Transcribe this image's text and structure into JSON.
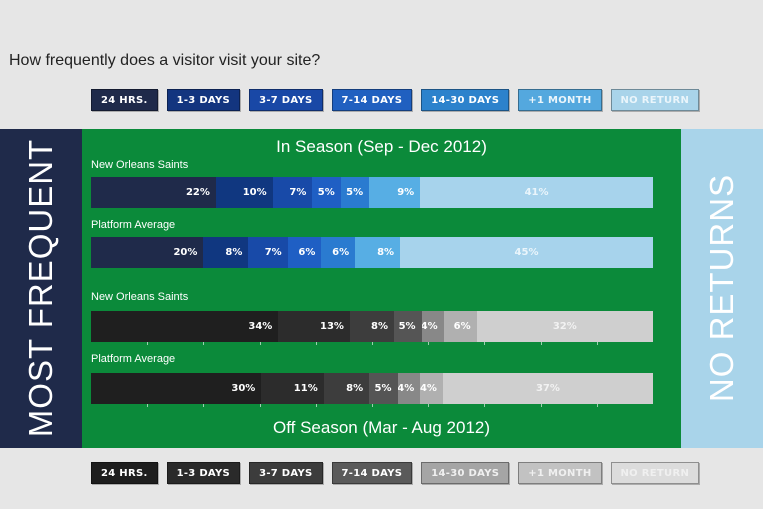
{
  "question": "How frequently does a visitor visit your site?",
  "side_labels": {
    "left": "MOST FREQUENT",
    "right": "NO RETURNS"
  },
  "legend_labels": [
    "24 HRS.",
    "1-3 DAYS",
    "3-7 DAYS",
    "7-14 DAYS",
    "14-30 DAYS",
    "+1 MONTH",
    "NO RETURN"
  ],
  "palettes": {
    "in_season": {
      "chips": [
        "#1f2a4a",
        "#13357f",
        "#1948a6",
        "#2060c0",
        "#2c82cc",
        "#54a8de",
        "#a9d4ea"
      ],
      "segments": [
        "#1f2a4a",
        "#103780",
        "#184aa8",
        "#1f5fc4",
        "#2a7bd0",
        "#57aee4",
        "#a7d3ec"
      ],
      "text": [
        "#ffffff",
        "#ffffff",
        "#ffffff",
        "#ffffff",
        "#ffffff",
        "#ffffff",
        "#eaf5fb"
      ]
    },
    "off_season": {
      "chips": [
        "#1e1e1e",
        "#2a2a2a",
        "#3c3c3c",
        "#5a5a5a",
        "#a5a5a5",
        "#c2c2c2",
        "#dcdcdc"
      ],
      "segments": [
        "#1f1f1f",
        "#2c2c2c",
        "#3d3d3d",
        "#555555",
        "#888888",
        "#b0b0b0",
        "#cfcfcf"
      ],
      "text": [
        "#ffffff",
        "#ffffff",
        "#ffffff",
        "#ffffff",
        "#ffffff",
        "#ffffff",
        "#f2f2f2"
      ]
    }
  },
  "chart_data": [
    {
      "type": "bar",
      "title": "In Season (Sep - Dec 2012)",
      "categories": [
        "24 HRS.",
        "1-3 DAYS",
        "3-7 DAYS",
        "7-14 DAYS",
        "14-30 DAYS",
        "+1 MONTH",
        "NO RETURN"
      ],
      "series": [
        {
          "name": "New Orleans Saints",
          "values": [
            22,
            10,
            7,
            5,
            5,
            9,
            41
          ],
          "labels": [
            "22%",
            "10%",
            "7%",
            "5%",
            "5%",
            "9%",
            "41%"
          ]
        },
        {
          "name": "Platform Average",
          "values": [
            20,
            8,
            7,
            6,
            6,
            8,
            45
          ],
          "labels": [
            "20%",
            "8%",
            "7%",
            "6%",
            "6%",
            "8%",
            "45%"
          ]
        }
      ]
    },
    {
      "type": "bar",
      "title": "Off Season (Mar - Aug 2012)",
      "categories": [
        "24 HRS.",
        "1-3 DAYS",
        "3-7 DAYS",
        "7-14 DAYS",
        "14-30 DAYS",
        "+1 MONTH",
        "NO RETURN"
      ],
      "series": [
        {
          "name": "New Orleans Saints",
          "values": [
            34,
            13,
            8,
            5,
            4,
            6,
            32
          ],
          "labels": [
            "34%",
            "13%",
            "8%",
            "5%",
            "4%",
            "6%",
            "32%"
          ]
        },
        {
          "name": "Platform Average",
          "values": [
            30,
            11,
            8,
            5,
            4,
            4,
            37
          ],
          "labels": [
            "30%",
            "11%",
            "8%",
            "5%",
            "4%",
            "4%",
            "37%"
          ]
        }
      ]
    }
  ]
}
